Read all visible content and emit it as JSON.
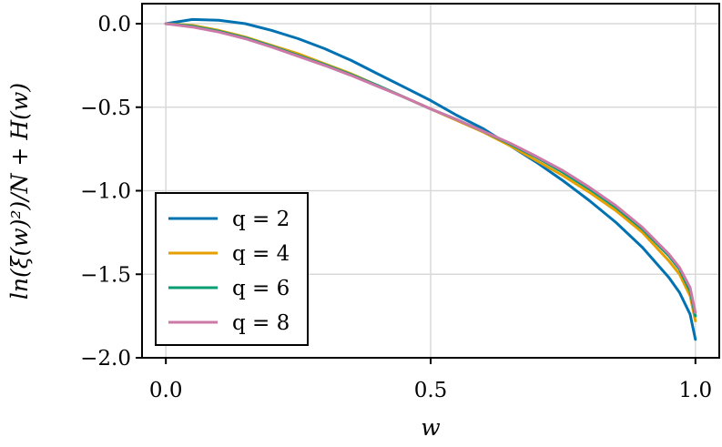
{
  "chart_data": {
    "type": "line",
    "xlabel": "w",
    "ylabel": "ln(ξ(w)²)/N + H(w)",
    "xlim": [
      -0.045,
      1.045
    ],
    "ylim": [
      -2.0,
      0.12
    ],
    "xticks": [
      0.0,
      0.5,
      1.0
    ],
    "xtick_labels": [
      "0.0",
      "0.5",
      "1.0"
    ],
    "yticks": [
      0.0,
      -0.5,
      -1.0,
      -1.5,
      -2.0
    ],
    "ytick_labels": [
      "0.0",
      "−0.5",
      "−1.0",
      "−1.5",
      "−2.0"
    ],
    "grid": true,
    "legend_position": "bottom-left",
    "x": [
      0.0,
      0.05,
      0.1,
      0.15,
      0.2,
      0.25,
      0.3,
      0.35,
      0.4,
      0.45,
      0.5,
      0.55,
      0.6,
      0.65,
      0.7,
      0.75,
      0.8,
      0.85,
      0.9,
      0.95,
      0.97,
      0.99,
      1.0
    ],
    "series": [
      {
        "name": "q = 2",
        "color": "#0072b2",
        "values": [
          0.0,
          0.025,
          0.02,
          0.0,
          -0.04,
          -0.09,
          -0.15,
          -0.22,
          -0.3,
          -0.38,
          -0.46,
          -0.55,
          -0.63,
          -0.73,
          -0.83,
          -0.94,
          -1.06,
          -1.19,
          -1.34,
          -1.52,
          -1.61,
          -1.74,
          -1.89
        ]
      },
      {
        "name": "q = 4",
        "color": "#e69f00",
        "values": [
          0.0,
          -0.01,
          -0.04,
          -0.08,
          -0.13,
          -0.18,
          -0.24,
          -0.3,
          -0.37,
          -0.44,
          -0.51,
          -0.58,
          -0.65,
          -0.73,
          -0.82,
          -0.91,
          -1.01,
          -1.12,
          -1.25,
          -1.42,
          -1.5,
          -1.63,
          -1.78
        ]
      },
      {
        "name": "q = 6",
        "color": "#009e73",
        "values": [
          0.0,
          -0.015,
          -0.045,
          -0.085,
          -0.135,
          -0.19,
          -0.245,
          -0.305,
          -0.37,
          -0.44,
          -0.51,
          -0.575,
          -0.645,
          -0.72,
          -0.8,
          -0.89,
          -0.99,
          -1.1,
          -1.23,
          -1.39,
          -1.47,
          -1.6,
          -1.75
        ]
      },
      {
        "name": "q = 8",
        "color": "#cc79a7",
        "values": [
          0.0,
          -0.02,
          -0.05,
          -0.09,
          -0.14,
          -0.195,
          -0.25,
          -0.31,
          -0.375,
          -0.44,
          -0.51,
          -0.575,
          -0.645,
          -0.715,
          -0.795,
          -0.88,
          -0.98,
          -1.09,
          -1.22,
          -1.38,
          -1.46,
          -1.58,
          -1.73
        ]
      }
    ]
  }
}
